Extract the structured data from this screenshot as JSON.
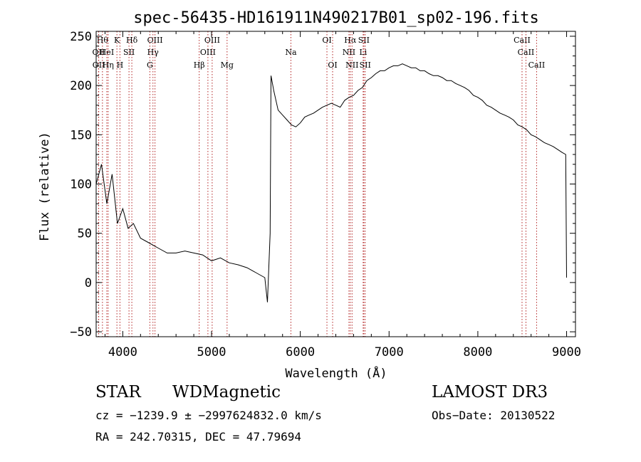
{
  "chart_data": {
    "type": "line",
    "title": "spec-56435-HD161911N490217B01_sp02-196.fits",
    "xlabel": "Wavelength (Å)",
    "ylabel": "Flux (relative)",
    "xlim": [
      3700,
      9100
    ],
    "ylim": [
      -55,
      255
    ],
    "xticks": [
      4000,
      5000,
      6000,
      7000,
      8000,
      9000
    ],
    "yticks": [
      -50,
      0,
      50,
      100,
      150,
      200,
      250
    ],
    "grid": false,
    "line_color": "#000000",
    "marker_color": "#b22222",
    "series": [
      {
        "x": [
          3700,
          3760,
          3820,
          3880,
          3940,
          4000,
          4060,
          4120,
          4200,
          4300,
          4400,
          4500,
          4600,
          4700,
          4800,
          4900,
          5000,
          5100,
          5200,
          5300,
          5400,
          5500,
          5600,
          5630,
          5660,
          5670,
          5700,
          5750,
          5800,
          5850,
          5900,
          5950,
          6000,
          6050,
          6100,
          6150,
          6200,
          6250,
          6300,
          6350,
          6400,
          6450,
          6500,
          6550,
          6600,
          6650,
          6700,
          6750,
          6800,
          6850,
          6900,
          6950,
          7000,
          7050,
          7100,
          7150,
          7200,
          7250,
          7300,
          7350,
          7400,
          7450,
          7500,
          7550,
          7600,
          7650,
          7700,
          7750,
          7800,
          7850,
          7900,
          7950,
          8000,
          8050,
          8100,
          8150,
          8200,
          8250,
          8300,
          8350,
          8400,
          8450,
          8500,
          8550,
          8600,
          8650,
          8700,
          8750,
          8800,
          8850,
          8900,
          8950,
          8990,
          9000
        ],
        "y": [
          100,
          120,
          80,
          110,
          60,
          75,
          55,
          60,
          45,
          40,
          35,
          30,
          30,
          32,
          30,
          28,
          22,
          25,
          20,
          18,
          15,
          10,
          5,
          -20,
          50,
          210,
          195,
          175,
          170,
          165,
          160,
          158,
          162,
          168,
          170,
          172,
          175,
          178,
          180,
          182,
          180,
          178,
          185,
          188,
          190,
          195,
          198,
          205,
          208,
          212,
          215,
          215,
          218,
          220,
          220,
          222,
          220,
          218,
          218,
          215,
          215,
          212,
          210,
          210,
          208,
          205,
          205,
          202,
          200,
          198,
          195,
          190,
          188,
          185,
          180,
          178,
          175,
          172,
          170,
          168,
          165,
          160,
          158,
          155,
          150,
          148,
          145,
          142,
          140,
          138,
          135,
          132,
          130,
          5
        ]
      }
    ],
    "lines": [
      {
        "label": "Hθ",
        "x": 3771,
        "row": 1
      },
      {
        "label": "OII",
        "x": 3727,
        "row": 2
      },
      {
        "label": "OII",
        "x": 3729,
        "row": 3
      },
      {
        "label": "HeI",
        "x": 3820,
        "row": 2
      },
      {
        "label": "Hη",
        "x": 3835,
        "row": 3
      },
      {
        "label": "K",
        "x": 3934,
        "row": 1
      },
      {
        "label": "H",
        "x": 3968,
        "row": 3
      },
      {
        "label": "Hδ",
        "x": 4102,
        "row": 1
      },
      {
        "label": "SII",
        "x": 4070,
        "row": 2
      },
      {
        "label": "OIII",
        "x": 4363,
        "row": 1
      },
      {
        "label": "Hγ",
        "x": 4340,
        "row": 2
      },
      {
        "label": "G",
        "x": 4305,
        "row": 3
      },
      {
        "label": "Hβ",
        "x": 4861,
        "row": 3
      },
      {
        "label": "OIII",
        "x": 5007,
        "row": 1
      },
      {
        "label": "OIII",
        "x": 4959,
        "row": 2
      },
      {
        "label": "Mg",
        "x": 5175,
        "row": 3
      },
      {
        "label": "Na",
        "x": 5894,
        "row": 2
      },
      {
        "label": "OI",
        "x": 6300,
        "row": 1
      },
      {
        "label": "OI",
        "x": 6364,
        "row": 3
      },
      {
        "label": "Hα",
        "x": 6563,
        "row": 1
      },
      {
        "label": "SII",
        "x": 6716,
        "row": 1
      },
      {
        "label": "NII",
        "x": 6548,
        "row": 2
      },
      {
        "label": "Li",
        "x": 6708,
        "row": 2
      },
      {
        "label": "NII",
        "x": 6583,
        "row": 3
      },
      {
        "label": "SII",
        "x": 6731,
        "row": 3
      },
      {
        "label": "CaII",
        "x": 8498,
        "row": 1
      },
      {
        "label": "CaII",
        "x": 8542,
        "row": 2
      },
      {
        "label": "CaII",
        "x": 8662,
        "row": 3
      }
    ]
  },
  "info": {
    "class_label": "STAR",
    "subclass_label": "WDMagnetic",
    "survey_label": "LAMOST DR3",
    "cz_text": "cz = −1239.9 ± −2997624832.0 km/s",
    "obs_date_text": "Obs−Date: 20130522",
    "coords_text": "RA = 242.70315, DEC =  47.79694"
  }
}
